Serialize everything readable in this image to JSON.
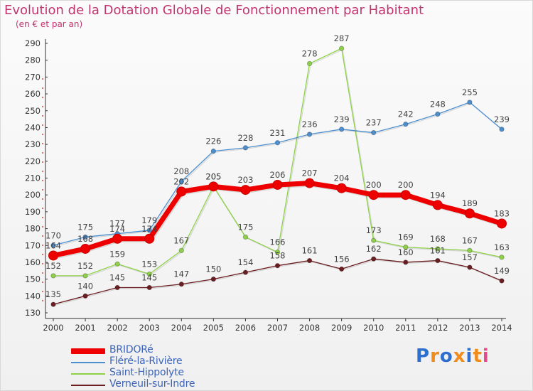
{
  "header": {
    "title": "Evolution de la Dotation Globale de Fonctionnement par Habitant",
    "subtitle": "(en € et par an)"
  },
  "chart_data": {
    "type": "line",
    "title": "Evolution de la Dotation Globale de Fonctionnement par Habitant",
    "ylabel": "(en € et par an)",
    "xlabel": "",
    "categories": [
      "2000",
      "2001",
      "2002",
      "2003",
      "2004",
      "2005",
      "2006",
      "2007",
      "2008",
      "2009",
      "2010",
      "2011",
      "2012",
      "2013",
      "2014"
    ],
    "ylim": [
      130,
      290
    ],
    "yticks": [
      130,
      140,
      150,
      160,
      170,
      180,
      190,
      200,
      210,
      220,
      230,
      240,
      250,
      260,
      270,
      280,
      290
    ],
    "grid": false,
    "series": [
      {
        "name": "Verneuil-sur-Indre",
        "color": "#6b1d20",
        "width": 1.3,
        "values": [
          135,
          140,
          145,
          145,
          147,
          150,
          154,
          158,
          161,
          156,
          162,
          160,
          161,
          157,
          149
        ]
      },
      {
        "name": "Saint-Hippolyte",
        "color": "#8ed148",
        "width": 1.3,
        "values": [
          152,
          152,
          159,
          153,
          167,
          205,
          175,
          166,
          278,
          287,
          173,
          169,
          168,
          167,
          163
        ]
      },
      {
        "name": "Fléré-la-Rivière",
        "color": "#4c8fcf",
        "width": 1.3,
        "values": [
          170,
          175,
          177,
          179,
          208,
          226,
          228,
          231,
          236,
          239,
          237,
          242,
          248,
          255,
          239
        ]
      },
      {
        "name": "BRIDORé",
        "color": "#ee0000",
        "width": 7,
        "values": [
          164,
          168,
          174,
          174,
          202,
          205,
          203,
          206,
          207,
          204,
          200,
          200,
          194,
          189,
          183
        ]
      }
    ],
    "legend": [
      "BRIDORé",
      "Fléré-la-Rivière",
      "Saint-Hippolyte",
      "Verneuil-sur-Indre"
    ],
    "legend_position": "bottom-left"
  },
  "branding": {
    "logo_text": "Proxiti",
    "logo_colors": [
      "#2d6fcf",
      "#f08c1c",
      "#2d6fcf",
      "#f08c1c",
      "#2d6fcf",
      "#f08c1c",
      "#e24a8a"
    ]
  }
}
